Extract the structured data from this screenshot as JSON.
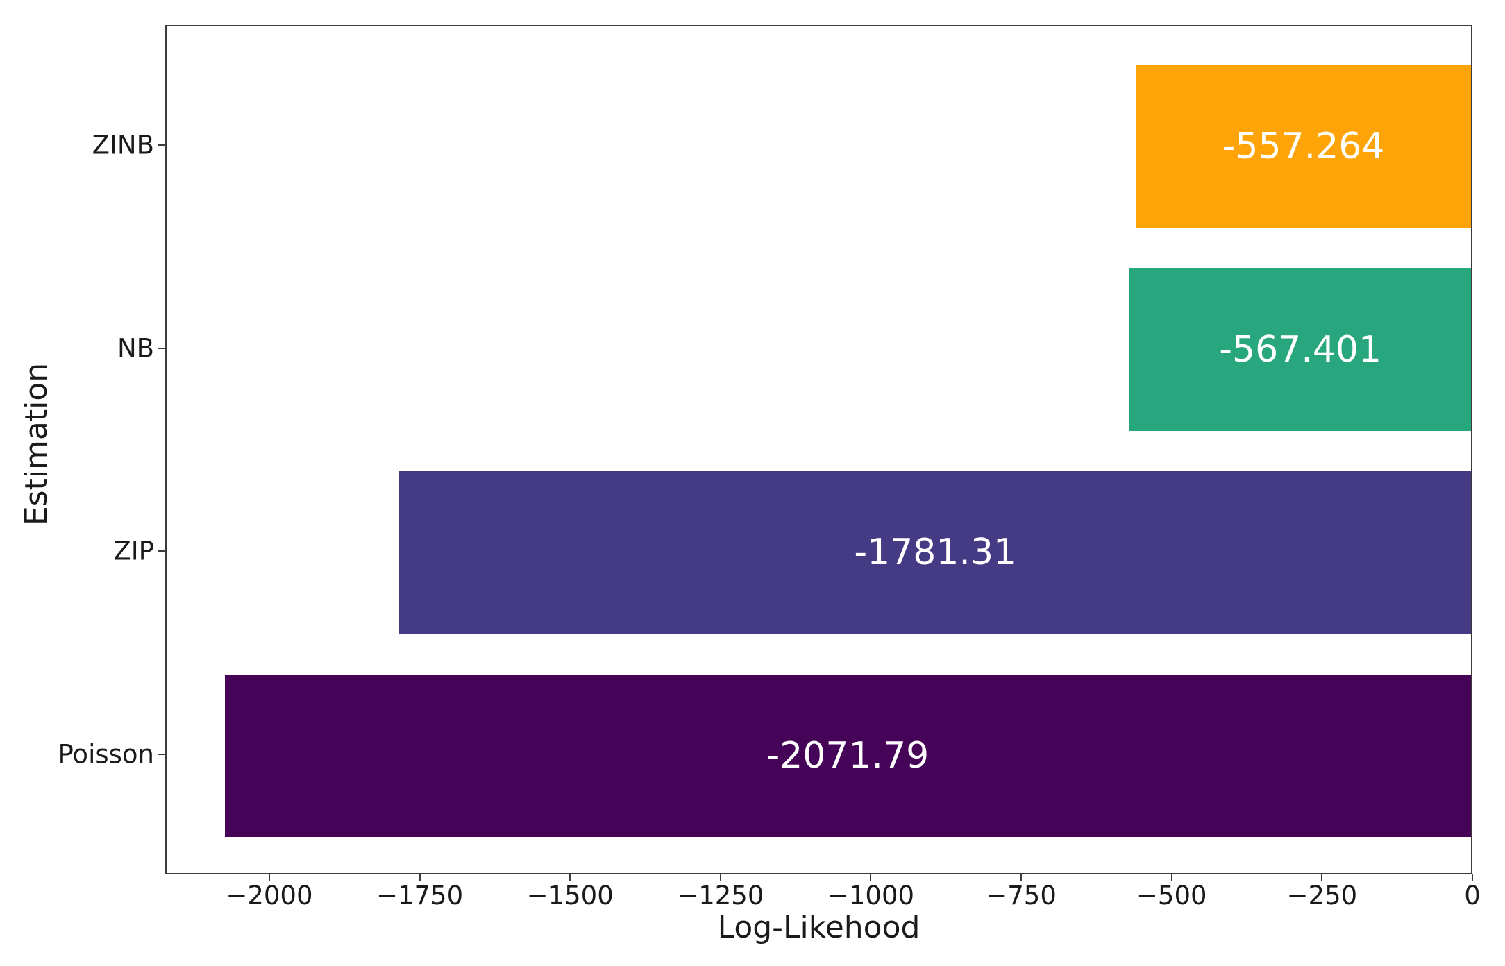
{
  "figure": {
    "background": "#ffffff",
    "spine_color": "#3b3b3b",
    "text_color": "#1a1a1a"
  },
  "chart_data": {
    "type": "bar",
    "orientation": "horizontal",
    "title": "",
    "xlabel": "Log-Likehood",
    "ylabel": "Estimation",
    "categories": [
      "ZINB",
      "NB",
      "ZIP",
      "Poisson"
    ],
    "values": [
      -557.264,
      -567.401,
      -1781.31,
      -2071.79
    ],
    "bar_labels": [
      "-557.264",
      "-567.401",
      "-1781.31",
      "-2071.79"
    ],
    "bar_colors": [
      "#ffa408",
      "#28a77f",
      "#443b84",
      "#450458"
    ],
    "bar_label_color": "#ffffff",
    "xlim": [
      -2173,
      0
    ],
    "xticks": [
      -2000,
      -1750,
      -1500,
      -1250,
      -1000,
      -750,
      -500,
      -250,
      0
    ],
    "xtick_labels": [
      "−2000",
      "−1750",
      "−1500",
      "−1250",
      "−1000",
      "−750",
      "−500",
      "−250",
      "0"
    ],
    "bar_thickness_frac": 0.8,
    "category_margin_frac": 0.19,
    "grid": false,
    "legend": null
  }
}
